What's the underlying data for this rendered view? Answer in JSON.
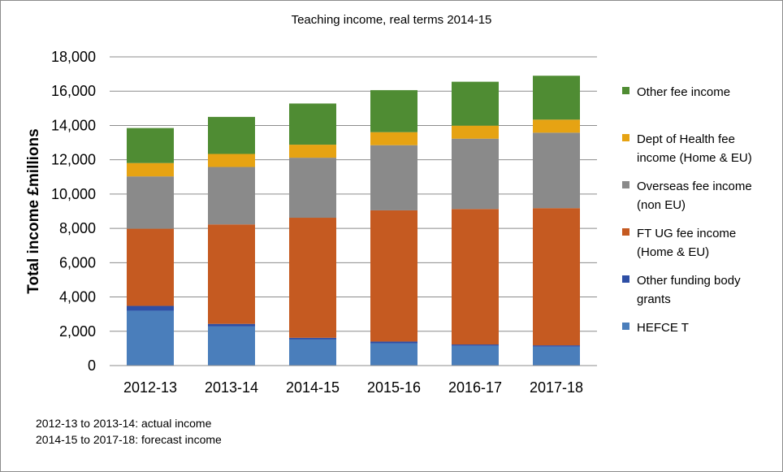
{
  "chart_data": {
    "type": "bar",
    "stacked": true,
    "title": "Teaching income, real terms 2014-15",
    "xlabel": "",
    "ylabel": "Total income £millions",
    "ylim": [
      0,
      18000
    ],
    "yticks": [
      0,
      2000,
      4000,
      6000,
      8000,
      10000,
      12000,
      14000,
      16000,
      18000
    ],
    "ytick_labels": [
      "0",
      "2,000",
      "4,000",
      "6,000",
      "8,000",
      "10,000",
      "12,000",
      "14,000",
      "16,000",
      "18,000"
    ],
    "grid": true,
    "legend_position": "right",
    "categories": [
      "2012-13",
      "2013-14",
      "2014-15",
      "2015-16",
      "2016-17",
      "2017-18"
    ],
    "series": [
      {
        "name": "HEFCE T",
        "color": "#4a7ebb",
        "values": [
          3200,
          2280,
          1520,
          1300,
          1150,
          1100
        ]
      },
      {
        "name": "Other funding body grants",
        "color": "#2e4fa5",
        "values": [
          280,
          150,
          100,
          100,
          80,
          80
        ]
      },
      {
        "name": "FT UG fee income (Home & EU)",
        "color": "#c55a21",
        "values": [
          4500,
          5800,
          7000,
          7650,
          7900,
          8000
        ]
      },
      {
        "name": "Overseas fee income (non EU)",
        "color": "#8a8a8a",
        "values": [
          3050,
          3350,
          3500,
          3800,
          4100,
          4400
        ]
      },
      {
        "name": "Dept of Health fee income (Home & EU)",
        "color": "#e6a313",
        "values": [
          780,
          760,
          760,
          760,
          760,
          760
        ]
      },
      {
        "name": "Other fee income",
        "color": "#4f8c33",
        "values": [
          2040,
          2160,
          2400,
          2450,
          2560,
          2560
        ]
      }
    ],
    "legend_entries": [
      {
        "lines": [
          "Other fee income"
        ],
        "color": "#4f8c33"
      },
      {
        "lines": [
          "Dept of Health fee",
          "income (Home & EU)"
        ],
        "color": "#e6a313"
      },
      {
        "lines": [
          "Overseas fee income",
          "(non EU)"
        ],
        "color": "#8a8a8a"
      },
      {
        "lines": [
          "FT UG fee income",
          "(Home & EU)"
        ],
        "color": "#c55a21"
      },
      {
        "lines": [
          "Other funding body",
          "grants"
        ],
        "color": "#2e4fa5"
      },
      {
        "lines": [
          "HEFCE T"
        ],
        "color": "#4a7ebb"
      }
    ],
    "annotations": [
      "2012-13 to 2013-14: actual income",
      "2014-15 to 2017-18: forecast income"
    ]
  }
}
